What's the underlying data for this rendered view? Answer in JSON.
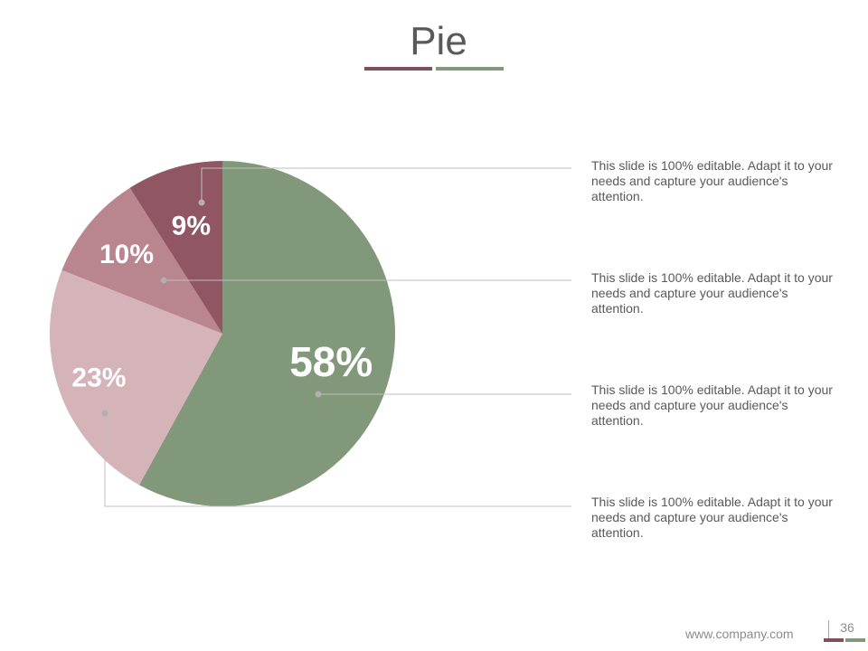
{
  "slide": {
    "title": "Pie",
    "footer_url": "www.company.com",
    "page_number": "36"
  },
  "colors": {
    "accent_dark": "#80505a",
    "accent_green": "#82987a",
    "text": "#595959",
    "leader": "#bfbfbf"
  },
  "chart_data": {
    "type": "pie",
    "title": "",
    "slices": [
      {
        "label": "58%",
        "value": 58,
        "color": "#82987a"
      },
      {
        "label": "23%",
        "value": 23,
        "color": "#d4b3b9"
      },
      {
        "label": "10%",
        "value": 10,
        "color": "#b9858e"
      },
      {
        "label": "9%",
        "value": 9,
        "color": "#905664"
      }
    ]
  },
  "callouts": [
    {
      "text": "This slide is 100% editable. Adapt it to your needs and capture your audience's attention."
    },
    {
      "text": "This slide is 100% editable. Adapt it to your needs and capture your audience's attention."
    },
    {
      "text": "This slide is 100% editable. Adapt it to your needs and capture your audience's attention."
    },
    {
      "text": "This slide is 100% editable. Adapt it to your needs and capture your audience's attention."
    }
  ]
}
